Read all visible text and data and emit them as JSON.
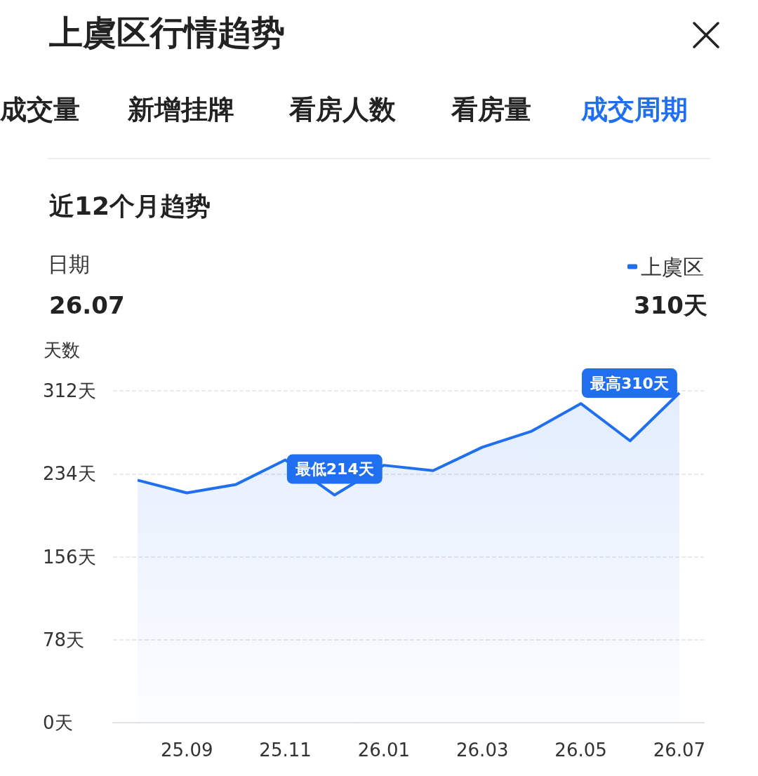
{
  "chart_data": {
    "type": "area",
    "title": "上虞区行情趋势",
    "subtitle": "近12个月趋势",
    "ylabel": "天数",
    "categories": [
      null,
      "25.09",
      null,
      "25.11",
      null,
      "26.01",
      null,
      "26.03",
      null,
      "26.05",
      null,
      "26.07"
    ],
    "series": [
      {
        "name": "上虞区",
        "color": "#1f6ff0",
        "values": [
          228,
          216,
          224,
          247,
          214,
          242,
          237,
          259,
          274,
          300,
          265,
          310
        ]
      }
    ],
    "ylim": [
      0,
      312
    ],
    "yticks": [
      {
        "value": 0,
        "label": "0天"
      },
      {
        "value": 78,
        "label": "78天"
      },
      {
        "value": 156,
        "label": "156天"
      },
      {
        "value": 234,
        "label": "234天"
      },
      {
        "value": 312,
        "label": "312天"
      }
    ],
    "grid": "y",
    "legend": "top right",
    "marker": "none",
    "annotations": [
      "成交量",
      "新增挂牌",
      "看房人数",
      "看房量",
      "成交周期",
      "日期",
      "26.07",
      "310天",
      {
        "text": "最低214天",
        "y": 214
      },
      {
        "text": "最高310天",
        "x": "26.07",
        "y": 310
      }
    ]
  }
}
